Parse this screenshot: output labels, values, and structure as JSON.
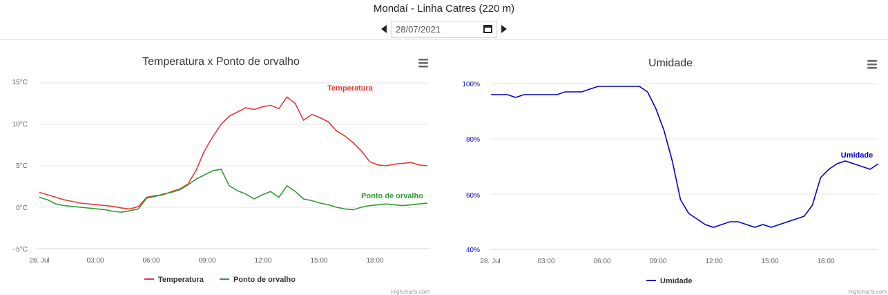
{
  "header": {
    "station_title": "Mondaí - Linha Catres (220 m)",
    "date_value": "28/07/2021"
  },
  "colors": {
    "temperature": "#e53935",
    "dewpoint": "#2e9b2e",
    "humidity": "#0000cc"
  },
  "chart_data": [
    {
      "type": "line",
      "title": "Temperatura x Ponto de orvalho",
      "x_unit": "hours",
      "xlim": [
        0,
        23.5
      ],
      "ylim": [
        -5,
        15
      ],
      "x_tick_labels": [
        "28. Jul",
        "03:00",
        "06:00",
        "09:00",
        "12:00",
        "15:00",
        "18:00"
      ],
      "y_tick_labels": [
        "−5°C",
        "0°C",
        "5°C",
        "10°C",
        "15°C"
      ],
      "grid": true,
      "legend": "bottom-center",
      "credits": "Highcharts.com",
      "series": [
        {
          "name": "Temperatura",
          "color": "#e53935",
          "x": [
            0,
            0.5,
            1,
            1.5,
            2,
            2.5,
            3,
            3.5,
            4,
            4.5,
            5,
            5.5,
            6,
            6.5,
            7,
            7.5,
            8,
            8.5,
            9,
            9.5,
            10,
            10.5,
            11,
            11.5,
            12,
            12.5,
            13,
            13.5,
            14,
            14.5,
            15,
            15.5,
            16,
            16.5,
            17,
            17.5,
            18,
            18.5,
            19,
            19.5,
            20,
            20.5,
            21,
            21.5,
            22,
            22.5,
            23,
            23.5
          ],
          "y": [
            1.8,
            1.5,
            1.2,
            0.9,
            0.7,
            0.5,
            0.4,
            0.3,
            0.2,
            0.1,
            -0.1,
            -0.2,
            0.1,
            1.2,
            1.4,
            1.5,
            1.9,
            2.2,
            2.8,
            4.5,
            6.8,
            8.5,
            10,
            11,
            11.5,
            12,
            11.8,
            12.1,
            12.3,
            11.9,
            13.3,
            12.5,
            10.5,
            11.2,
            10.8,
            10.3,
            9.2,
            8.6,
            7.8,
            6.8,
            5.5,
            5.1,
            5.0,
            5.2,
            5.3,
            5.4,
            5.1,
            5.0
          ]
        },
        {
          "name": "Ponto de orvalho",
          "color": "#2e9b2e",
          "x": [
            0,
            0.5,
            1,
            1.5,
            2,
            2.5,
            3,
            3.5,
            4,
            4.5,
            5,
            5.5,
            6,
            6.5,
            7,
            7.5,
            8,
            8.5,
            9,
            9.5,
            10,
            10.5,
            11,
            11.5,
            12,
            12.5,
            13,
            13.5,
            14,
            14.5,
            15,
            15.5,
            16,
            16.5,
            17,
            17.5,
            18,
            18.5,
            19,
            19.5,
            20,
            20.5,
            21,
            21.5,
            22,
            22.5,
            23,
            23.5
          ],
          "y": [
            1.2,
            0.9,
            0.4,
            0.2,
            0.1,
            0.0,
            -0.1,
            -0.2,
            -0.3,
            -0.5,
            -0.6,
            -0.4,
            -0.2,
            1.1,
            1.3,
            1.6,
            1.8,
            2.1,
            2.7,
            3.4,
            3.9,
            4.4,
            4.6,
            2.6,
            2.0,
            1.6,
            1.0,
            1.5,
            1.9,
            1.2,
            2.6,
            1.9,
            1.0,
            0.8,
            0.5,
            0.3,
            0.0,
            -0.2,
            -0.3,
            0.0,
            0.2,
            0.3,
            0.4,
            0.3,
            0.2,
            0.3,
            0.4,
            0.5
          ]
        }
      ]
    },
    {
      "type": "line",
      "title": "Umidade",
      "x_unit": "hours",
      "xlim": [
        0,
        23.5
      ],
      "ylim": [
        40,
        100
      ],
      "x_tick_labels": [
        "28. Jul",
        "03:00",
        "06:00",
        "09:00",
        "12:00",
        "15:00",
        "18:00"
      ],
      "y_tick_labels": [
        "40%",
        "60%",
        "80%",
        "100%"
      ],
      "grid": true,
      "legend": "bottom-center",
      "credits": "Highcharts.com",
      "series": [
        {
          "name": "Umidade",
          "color": "#0000cc",
          "x": [
            0,
            0.5,
            1,
            1.5,
            2,
            2.5,
            3,
            3.5,
            4,
            4.5,
            5,
            5.5,
            6,
            6.5,
            7,
            7.5,
            8,
            8.5,
            9,
            9.5,
            10,
            10.5,
            11,
            11.5,
            12,
            12.5,
            13,
            13.5,
            14,
            14.5,
            15,
            15.5,
            16,
            16.5,
            17,
            17.5,
            18,
            18.5,
            19,
            19.5,
            20,
            20.5,
            21,
            21.5,
            22,
            22.5,
            23,
            23.5
          ],
          "y": [
            96,
            96,
            96,
            95,
            96,
            96,
            96,
            96,
            96,
            97,
            97,
            97,
            98,
            99,
            99,
            99,
            99,
            99,
            99,
            97,
            91,
            83,
            72,
            58,
            53,
            51,
            49,
            48,
            49,
            50,
            50,
            49,
            48,
            49,
            48,
            49,
            50,
            51,
            52,
            56,
            66,
            69,
            71,
            72,
            71,
            70,
            69,
            71
          ]
        }
      ]
    }
  ]
}
